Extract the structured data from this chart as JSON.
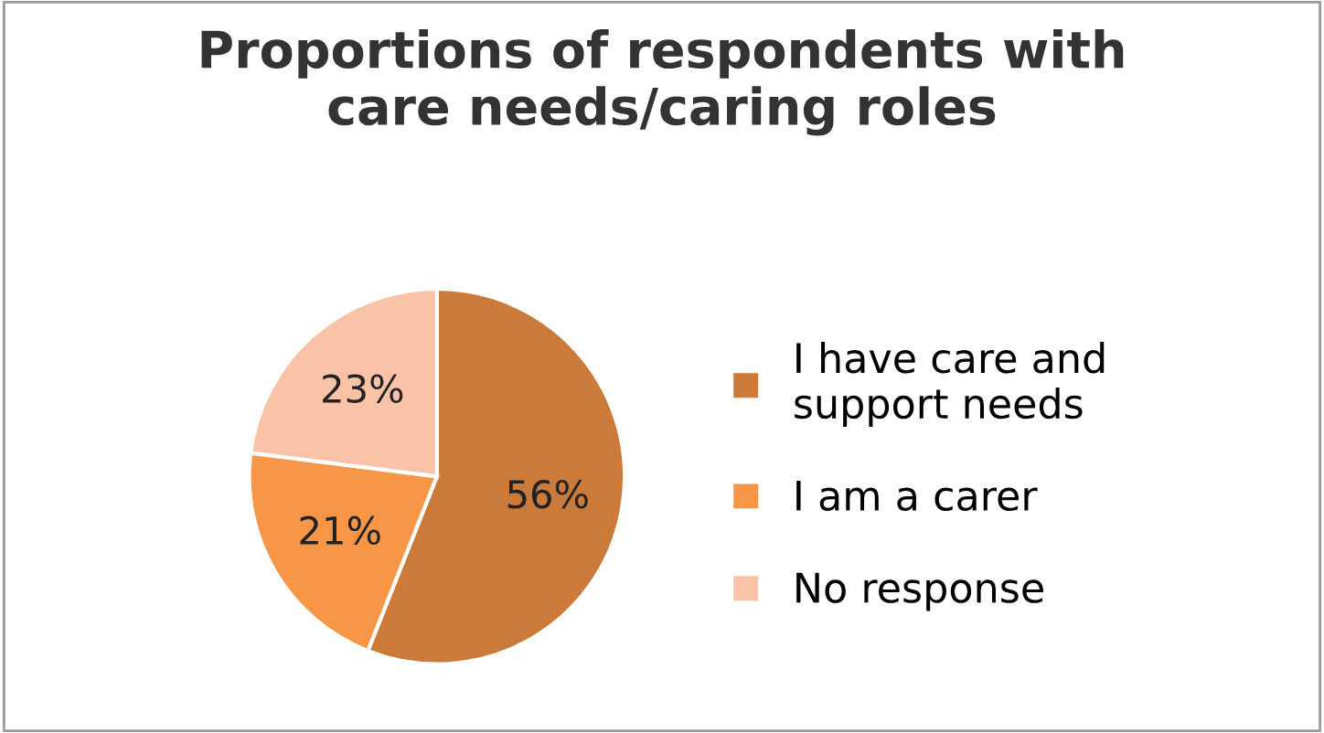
{
  "chart_data": {
    "type": "pie",
    "title": "Proportions of respondents with\ncare needs/caring roles",
    "categories": [
      "I have care and\nsupport needs",
      "I am a carer",
      "No response"
    ],
    "values": [
      56,
      21,
      23
    ],
    "colors": [
      "#cc7a3a",
      "#f79646",
      "#fac2a6"
    ],
    "value_labels": [
      "56%",
      "21%",
      "23%"
    ],
    "legend": "right"
  }
}
